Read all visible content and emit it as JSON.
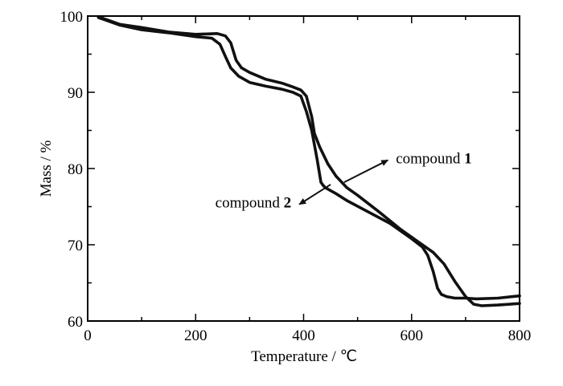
{
  "chart_data": {
    "type": "line",
    "xlabel": "Temperature / ℃",
    "ylabel": "Mass / %",
    "xlim": [
      0,
      800
    ],
    "ylim": [
      60,
      100
    ],
    "xticks": [
      0,
      200,
      400,
      600,
      800
    ],
    "yticks": [
      60,
      70,
      80,
      90,
      100
    ],
    "x_minor_step": 100,
    "y_minor_step": 5,
    "grid": false,
    "line_color": "#111111",
    "series": [
      {
        "name": "compound 1",
        "x": [
          20,
          60,
          100,
          150,
          200,
          240,
          255,
          265,
          275,
          285,
          300,
          330,
          360,
          380,
          395,
          405,
          415,
          420,
          430,
          445,
          460,
          480,
          500,
          540,
          580,
          610,
          640,
          660,
          680,
          700,
          715,
          730,
          760,
          800
        ],
        "y": [
          99.9,
          98.9,
          98.5,
          97.9,
          97.6,
          97.7,
          97.4,
          96.5,
          94.2,
          93.2,
          92.6,
          91.7,
          91.2,
          90.7,
          90.3,
          89.5,
          86.8,
          84.6,
          82.8,
          80.6,
          79.0,
          77.5,
          76.5,
          74.3,
          72.0,
          70.5,
          69.0,
          67.5,
          65.2,
          63.2,
          62.2,
          62.0,
          62.1,
          62.3
        ]
      },
      {
        "name": "compound 2",
        "x": [
          20,
          60,
          100,
          150,
          200,
          230,
          245,
          255,
          265,
          280,
          300,
          330,
          360,
          380,
          395,
          405,
          415,
          425,
          432,
          436,
          440,
          460,
          480,
          520,
          560,
          600,
          620,
          630,
          640,
          648,
          655,
          665,
          680,
          700,
          720,
          760,
          800
        ],
        "y": [
          99.8,
          98.8,
          98.2,
          97.8,
          97.3,
          97.1,
          96.3,
          94.7,
          93.2,
          92.1,
          91.3,
          90.8,
          90.4,
          90.0,
          89.5,
          87.5,
          85.0,
          81.2,
          78.2,
          77.8,
          77.5,
          76.7,
          75.8,
          74.3,
          72.8,
          70.8,
          69.7,
          68.6,
          66.5,
          64.3,
          63.5,
          63.2,
          63.0,
          63.0,
          62.9,
          63.0,
          63.3
        ]
      }
    ],
    "annotations": [
      {
        "text": "compound ",
        "bold": "1",
        "arrow_from": [
          475,
          78.2
        ],
        "arrow_to": [
          556,
          81.1
        ]
      },
      {
        "text": "compound ",
        "bold": "2",
        "arrow_from": [
          450,
          77.9
        ],
        "arrow_to": [
          392,
          75.3
        ]
      }
    ]
  }
}
